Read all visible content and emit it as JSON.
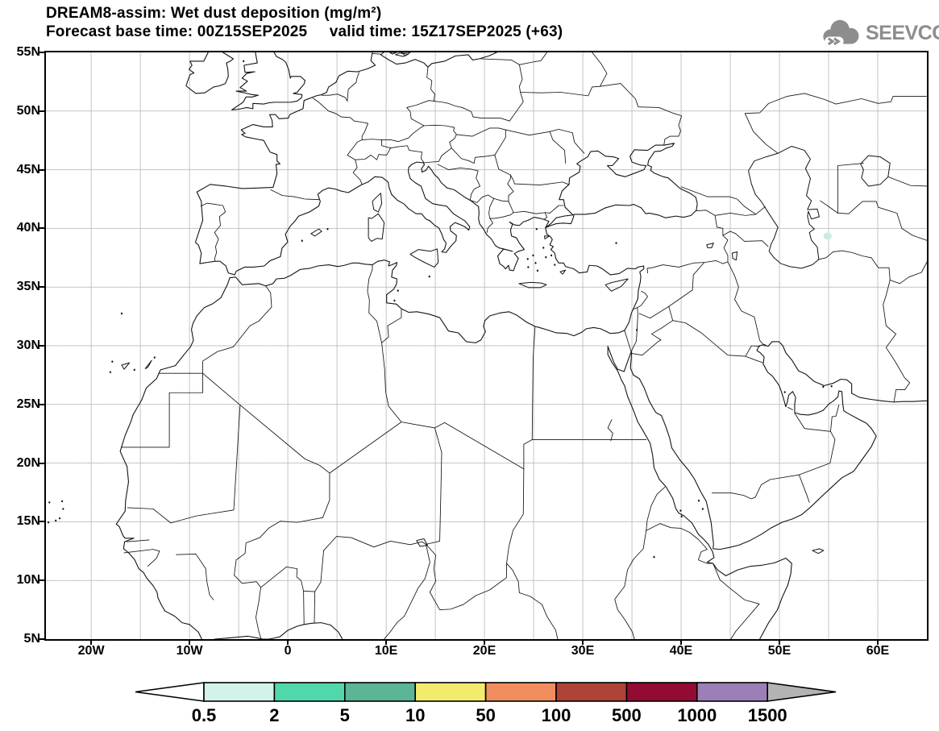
{
  "header": {
    "line1": "DREAM8-assim: Wet dust deposition (mg/m²)",
    "line2": "Forecast base time: 00Z15SEP2025     valid time: 15Z17SEP2025 (+63)",
    "model": "DREAM8-assim",
    "variable": "Wet dust deposition",
    "units": "mg/m²",
    "forecast_base_time": "00Z15SEP2025",
    "valid_time": "15Z17SEP2025",
    "forecast_hour": "+63"
  },
  "logo": {
    "text": "SEEVCCC",
    "color": "#8d8d8d"
  },
  "axes": {
    "lat": {
      "labels": [
        "55N",
        "50N",
        "45N",
        "40N",
        "35N",
        "30N",
        "25N",
        "20N",
        "15N",
        "10N",
        "5N"
      ],
      "values": [
        55,
        50,
        45,
        40,
        35,
        30,
        25,
        20,
        15,
        10,
        5
      ]
    },
    "lon": {
      "labels": [
        "20W",
        "10W",
        "0",
        "10E",
        "20E",
        "30E",
        "40E",
        "50E",
        "60E"
      ],
      "values": [
        -20,
        -10,
        0,
        10,
        20,
        30,
        40,
        50,
        60
      ]
    }
  },
  "colorbar": {
    "values": [
      "0.5",
      "2",
      "5",
      "10",
      "50",
      "100",
      "500",
      "1000",
      "1500"
    ],
    "segment_colors": [
      "#d2f3ea",
      "#50d8ac",
      "#5ab695",
      "#f3eb6e",
      "#f08d5e",
      "#b04338",
      "#930b33",
      "#9c7fb6"
    ],
    "left_arrow_color": "#ffffff",
    "right_arrow_color": "#b3b3b3",
    "outline_color": "#000000"
  },
  "map": {
    "line_color": "#141414",
    "grid_color": "#bcbcbc",
    "deposition_spots": [
      {
        "lon": 54.9,
        "lat": 39.35,
        "color": "#c9ebe3",
        "value_bin": "0.5-2"
      }
    ]
  }
}
